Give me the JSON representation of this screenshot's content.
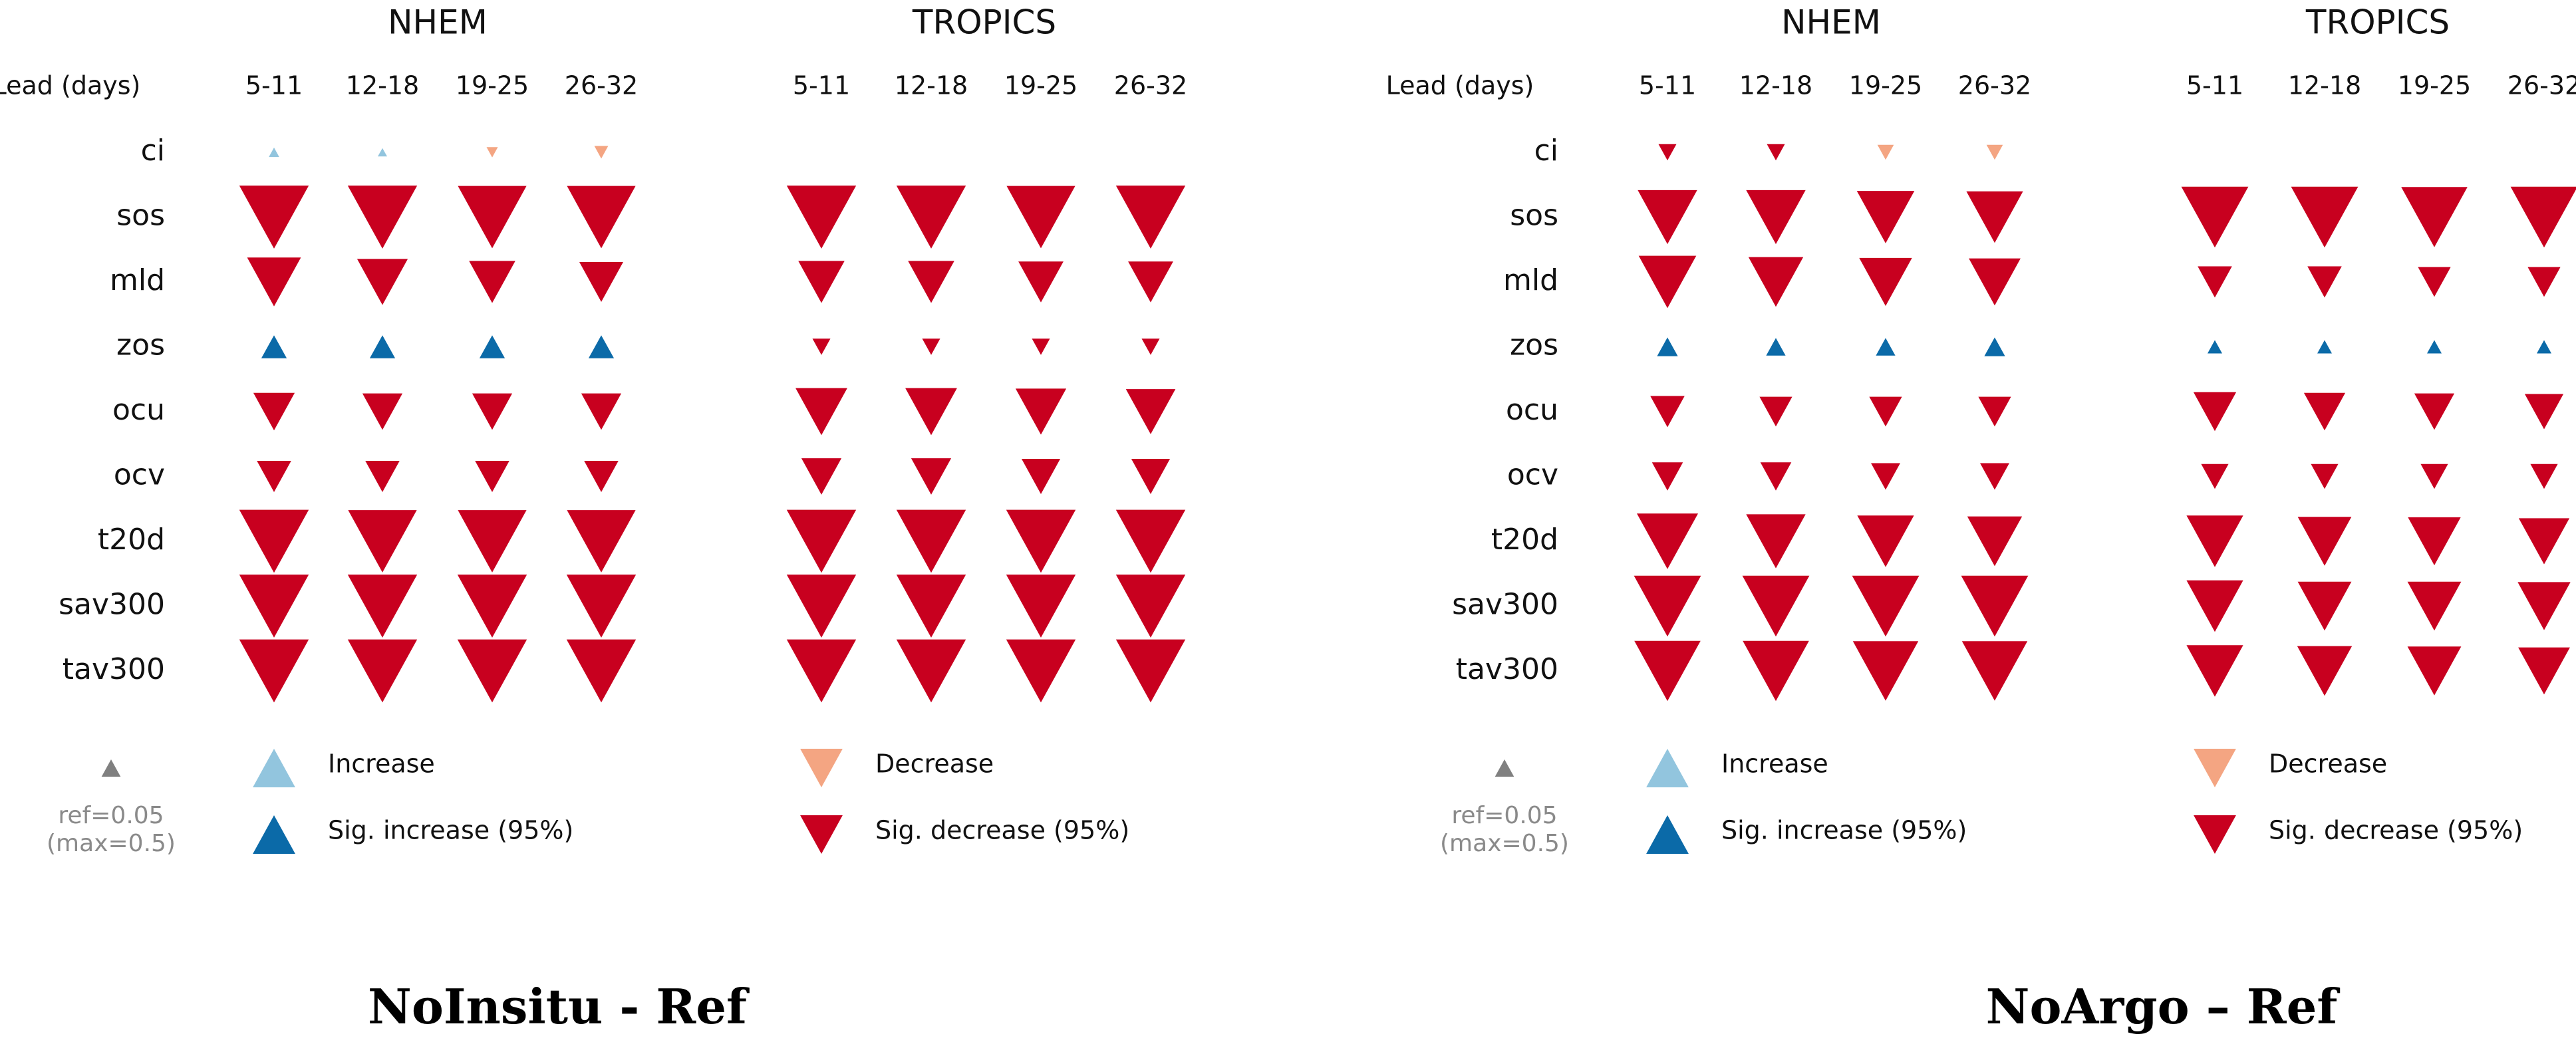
{
  "colors": {
    "sig_decrease": "#c8001f",
    "decrease": "#f4a582",
    "increase": "#92c5de",
    "sig_increase": "#0b6aa8",
    "reference": "#808080"
  },
  "common": {
    "variables": [
      "ci",
      "sos",
      "mld",
      "zos",
      "ocu",
      "ocv",
      "t20d",
      "sav300",
      "tav300"
    ],
    "lead_label": "Lead (days)",
    "leads": [
      "5-11",
      "12-18",
      "19-25",
      "26-32"
    ],
    "regions": [
      "NHEM",
      "TROPICS"
    ],
    "reference_value": 0.05,
    "max_value": 0.5
  },
  "legend": {
    "ref_line1": "ref=0.05",
    "ref_line2": "(max=0.5)",
    "increase": "Increase",
    "sig_increase": "Sig. increase (95%)",
    "decrease": "Decrease",
    "sig_decrease": "Sig. decrease (95%)"
  },
  "captions": [
    "NoInsitu - Ref",
    "NoArgo – Ref"
  ],
  "chart_data": [
    {
      "type": "triangle-matrix",
      "title": "NoInsitu - Ref",
      "categories": [
        "5-11",
        "12-18",
        "19-25",
        "26-32"
      ],
      "panels": [
        {
          "region": "NHEM",
          "series": [
            {
              "name": "ci",
              "values": [
                0.01,
                0.008,
                -0.012,
                -0.018
              ],
              "significant": [
                false,
                false,
                false,
                false
              ]
            },
            {
              "name": "sos",
              "values": [
                -0.45,
                -0.45,
                -0.44,
                -0.44
              ],
              "significant": [
                true,
                true,
                true,
                true
              ]
            },
            {
              "name": "mld",
              "values": [
                -0.27,
                -0.24,
                -0.2,
                -0.18
              ],
              "significant": [
                true,
                true,
                true,
                true
              ]
            },
            {
              "name": "zos",
              "values": [
                0.06,
                0.06,
                0.06,
                0.06
              ],
              "significant": [
                true,
                true,
                true,
                true
              ]
            },
            {
              "name": "ocu",
              "values": [
                -0.16,
                -0.15,
                -0.15,
                -0.15
              ],
              "significant": [
                true,
                true,
                true,
                true
              ]
            },
            {
              "name": "ocv",
              "values": [
                -0.11,
                -0.11,
                -0.11,
                -0.11
              ],
              "significant": [
                true,
                true,
                true,
                true
              ]
            },
            {
              "name": "t20d",
              "values": [
                -0.45,
                -0.44,
                -0.44,
                -0.44
              ],
              "significant": [
                true,
                true,
                true,
                true
              ]
            },
            {
              "name": "sav300",
              "values": [
                -0.45,
                -0.45,
                -0.45,
                -0.45
              ],
              "significant": [
                true,
                true,
                true,
                true
              ]
            },
            {
              "name": "tav300",
              "values": [
                -0.45,
                -0.45,
                -0.45,
                -0.45
              ],
              "significant": [
                true,
                true,
                true,
                true
              ]
            }
          ]
        },
        {
          "region": "TROPICS",
          "series": [
            {
              "name": "ci",
              "values": [
                null,
                null,
                null,
                null
              ],
              "significant": [
                false,
                false,
                false,
                false
              ]
            },
            {
              "name": "sos",
              "values": [
                -0.45,
                -0.45,
                -0.44,
                -0.45
              ],
              "significant": [
                true,
                true,
                true,
                true
              ]
            },
            {
              "name": "mld",
              "values": [
                -0.2,
                -0.2,
                -0.19,
                -0.19
              ],
              "significant": [
                true,
                true,
                true,
                true
              ]
            },
            {
              "name": "zos",
              "values": [
                -0.03,
                -0.03,
                -0.03,
                -0.03
              ],
              "significant": [
                true,
                true,
                true,
                true
              ]
            },
            {
              "name": "ocu",
              "values": [
                -0.25,
                -0.25,
                -0.24,
                -0.23
              ],
              "significant": [
                true,
                true,
                true,
                true
              ]
            },
            {
              "name": "ocv",
              "values": [
                -0.15,
                -0.15,
                -0.14,
                -0.14
              ],
              "significant": [
                true,
                true,
                true,
                true
              ]
            },
            {
              "name": "t20d",
              "values": [
                -0.45,
                -0.45,
                -0.45,
                -0.45
              ],
              "significant": [
                true,
                true,
                true,
                true
              ]
            },
            {
              "name": "sav300",
              "values": [
                -0.45,
                -0.45,
                -0.45,
                -0.45
              ],
              "significant": [
                true,
                true,
                true,
                true
              ]
            },
            {
              "name": "tav300",
              "values": [
                -0.45,
                -0.45,
                -0.45,
                -0.45
              ],
              "significant": [
                true,
                true,
                true,
                true
              ]
            }
          ]
        }
      ]
    },
    {
      "type": "triangle-matrix",
      "title": "NoArgo – Ref",
      "categories": [
        "5-11",
        "12-18",
        "19-25",
        "26-32"
      ],
      "panels": [
        {
          "region": "NHEM",
          "series": [
            {
              "name": "ci",
              "values": [
                -0.03,
                -0.03,
                -0.025,
                -0.025
              ],
              "significant": [
                true,
                true,
                false,
                false
              ]
            },
            {
              "name": "sos",
              "values": [
                -0.33,
                -0.33,
                -0.31,
                -0.3
              ],
              "significant": [
                true,
                true,
                true,
                true
              ]
            },
            {
              "name": "mld",
              "values": [
                -0.31,
                -0.28,
                -0.26,
                -0.25
              ],
              "significant": [
                true,
                true,
                true,
                true
              ]
            },
            {
              "name": "zos",
              "values": [
                0.04,
                0.035,
                0.035,
                0.04
              ],
              "significant": [
                true,
                true,
                true,
                true
              ]
            },
            {
              "name": "ocu",
              "values": [
                -0.11,
                -0.1,
                -0.1,
                -0.1
              ],
              "significant": [
                true,
                true,
                true,
                true
              ]
            },
            {
              "name": "ocv",
              "values": [
                -0.09,
                -0.09,
                -0.08,
                -0.08
              ],
              "significant": [
                true,
                true,
                true,
                true
              ]
            },
            {
              "name": "t20d",
              "values": [
                -0.35,
                -0.33,
                -0.3,
                -0.28
              ],
              "significant": [
                true,
                true,
                true,
                true
              ]
            },
            {
              "name": "sav300",
              "values": [
                -0.42,
                -0.42,
                -0.42,
                -0.42
              ],
              "significant": [
                true,
                true,
                true,
                true
              ]
            },
            {
              "name": "tav300",
              "values": [
                -0.41,
                -0.41,
                -0.4,
                -0.4
              ],
              "significant": [
                true,
                true,
                true,
                true
              ]
            }
          ]
        },
        {
          "region": "TROPICS",
          "series": [
            {
              "name": "ci",
              "values": [
                null,
                null,
                null,
                null
              ],
              "significant": [
                false,
                false,
                false,
                false
              ]
            },
            {
              "name": "sos",
              "values": [
                -0.42,
                -0.42,
                -0.41,
                -0.42
              ],
              "significant": [
                true,
                true,
                true,
                true
              ]
            },
            {
              "name": "mld",
              "values": [
                -0.11,
                -0.11,
                -0.1,
                -0.1
              ],
              "significant": [
                true,
                true,
                true,
                true
              ]
            },
            {
              "name": "zos",
              "values": [
                0.02,
                0.02,
                0.02,
                0.02
              ],
              "significant": [
                true,
                true,
                true,
                true
              ]
            },
            {
              "name": "ocu",
              "values": [
                -0.17,
                -0.16,
                -0.15,
                -0.14
              ],
              "significant": [
                true,
                true,
                true,
                true
              ]
            },
            {
              "name": "ocv",
              "values": [
                -0.07,
                -0.07,
                -0.07,
                -0.07
              ],
              "significant": [
                true,
                true,
                true,
                true
              ]
            },
            {
              "name": "t20d",
              "values": [
                -0.3,
                -0.27,
                -0.26,
                -0.24
              ],
              "significant": [
                true,
                true,
                true,
                true
              ]
            },
            {
              "name": "sav300",
              "values": [
                -0.3,
                -0.27,
                -0.27,
                -0.26
              ],
              "significant": [
                true,
                true,
                true,
                true
              ]
            },
            {
              "name": "tav300",
              "values": [
                -0.3,
                -0.28,
                -0.27,
                -0.25
              ],
              "significant": [
                true,
                true,
                true,
                true
              ]
            }
          ]
        }
      ]
    }
  ]
}
